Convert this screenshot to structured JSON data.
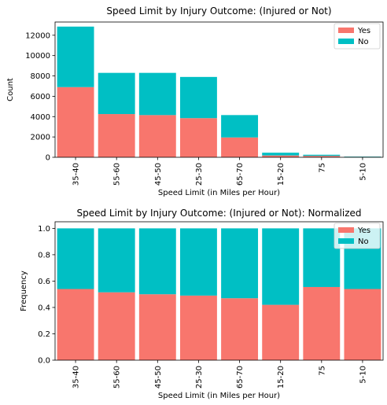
{
  "colors": {
    "yes": "#F8766D",
    "no": "#00BFC4"
  },
  "chart_data": [
    {
      "type": "bar",
      "stacked": true,
      "title": "Speed Limit by Injury Outcome: (Injured or Not)",
      "xlabel": "Speed Limit (in Miles per Hour)",
      "ylabel": "Count",
      "categories": [
        "35-40",
        "55-60",
        "45-50",
        "25-30",
        "65-70",
        "15-20",
        "75",
        "5-10"
      ],
      "series": [
        {
          "name": "Yes",
          "values": [
            6900,
            4250,
            4150,
            3850,
            1950,
            180,
            140,
            40
          ]
        },
        {
          "name": "No",
          "values": [
            5950,
            4050,
            4150,
            4050,
            2200,
            270,
            110,
            30
          ]
        }
      ],
      "ylim": [
        0,
        13300
      ],
      "yticks": [
        0,
        2000,
        4000,
        6000,
        8000,
        10000,
        12000
      ],
      "legend": "top-right"
    },
    {
      "type": "bar",
      "stacked": true,
      "title": "Speed Limit by Injury Outcome: (Injured or Not): Normalized",
      "xlabel": "Speed Limit (in Miles per Hour)",
      "ylabel": "Frequency",
      "categories": [
        "35-40",
        "55-60",
        "45-50",
        "25-30",
        "65-70",
        "15-20",
        "75",
        "5-10"
      ],
      "series": [
        {
          "name": "Yes",
          "values": [
            0.54,
            0.515,
            0.5,
            0.49,
            0.47,
            0.42,
            0.555,
            0.54
          ]
        },
        {
          "name": "No",
          "values": [
            0.46,
            0.485,
            0.5,
            0.51,
            0.53,
            0.58,
            0.445,
            0.46
          ]
        }
      ],
      "ylim": [
        0,
        1.05
      ],
      "yticks": [
        0.0,
        0.2,
        0.4,
        0.6,
        0.8,
        1.0
      ],
      "ytick_labels": [
        "0.0",
        "0.2",
        "0.4",
        "0.6",
        "0.8",
        "1.0"
      ],
      "legend": "top-right"
    }
  ]
}
